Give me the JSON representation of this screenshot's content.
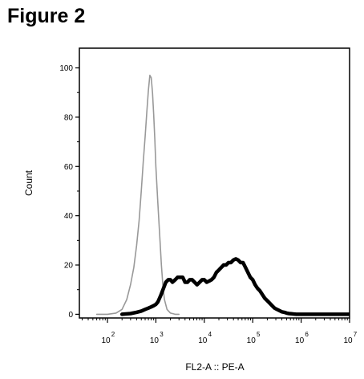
{
  "figure_title": "Figure 2",
  "chart_data": {
    "type": "line",
    "title": "Figure 2",
    "xlabel": "FL2-A :: PE-A",
    "ylabel": "Count",
    "xscale": "log",
    "xlim": [
      26.3,
      10000000
    ],
    "ylim": [
      -1.5,
      108
    ],
    "grid": false,
    "y_ticks": [
      0,
      20,
      40,
      60,
      80,
      100
    ],
    "x_tick_labels": [
      {
        "value": 100,
        "base": "10",
        "exp": "2"
      },
      {
        "value": 1000,
        "base": "10",
        "exp": "3"
      },
      {
        "value": 10000,
        "base": "10",
        "exp": "4"
      },
      {
        "value": 100000,
        "base": "10",
        "exp": "5"
      },
      {
        "value": 1000000,
        "base": "10",
        "exp": "6"
      },
      {
        "value": 10000000,
        "base": "10",
        "exp": "7"
      }
    ],
    "series": [
      {
        "color": "#999999",
        "style": "thin",
        "x": [
          60,
          100,
          150,
          200,
          250,
          300,
          350,
          400,
          450,
          500,
          550,
          600,
          650,
          700,
          750,
          800,
          850,
          900,
          950,
          1000,
          1100,
          1200,
          1300,
          1400,
          1500,
          1700,
          2000,
          2500,
          3000
        ],
        "y": [
          0,
          0,
          0.5,
          2,
          6,
          12,
          19,
          28,
          38,
          50,
          62,
          72,
          82,
          91,
          97,
          96,
          90,
          81,
          71,
          60,
          45,
          32,
          20,
          11,
          6,
          2,
          0.5,
          0,
          0
        ]
      },
      {
        "color": "#000000",
        "style": "thick",
        "x": [
          200,
          300,
          400,
          500,
          600,
          700,
          800,
          900,
          1000,
          1100,
          1250,
          1400,
          1600,
          1800,
          2000,
          2200,
          2500,
          2800,
          3200,
          3600,
          4000,
          4500,
          5000,
          5600,
          6300,
          7100,
          8000,
          9000,
          10000,
          11200,
          12600,
          14100,
          15800,
          17800,
          20000,
          22400,
          25100,
          28200,
          31600,
          35500,
          39800,
          44700,
          50100,
          56200,
          63100,
          70800,
          79400,
          89100,
          100000,
          112000,
          126000,
          141000,
          158000,
          178000,
          200000,
          224000,
          251000,
          282000,
          316000,
          355000,
          398000,
          447000,
          501000,
          562000,
          631000,
          708000,
          794000,
          891000,
          1000000,
          2000000,
          5000000,
          10000000
        ],
        "y": [
          0,
          0.3,
          0.8,
          1.3,
          2,
          2.5,
          3,
          3.5,
          4,
          5,
          7.5,
          10,
          13,
          14,
          14,
          13,
          14,
          15,
          15,
          15,
          13,
          13,
          14,
          14,
          13,
          12,
          13,
          14,
          14,
          13,
          13.5,
          14,
          15,
          17,
          18,
          19,
          20,
          20,
          21,
          21,
          22,
          22.5,
          22,
          21,
          21,
          19,
          17,
          15,
          14,
          12,
          10.5,
          9.5,
          8,
          6.5,
          5.5,
          4.5,
          3.5,
          2.5,
          2,
          1.5,
          1,
          0.8,
          0.5,
          0.3,
          0.2,
          0.1,
          0,
          0,
          0,
          0,
          0,
          0
        ]
      }
    ]
  }
}
